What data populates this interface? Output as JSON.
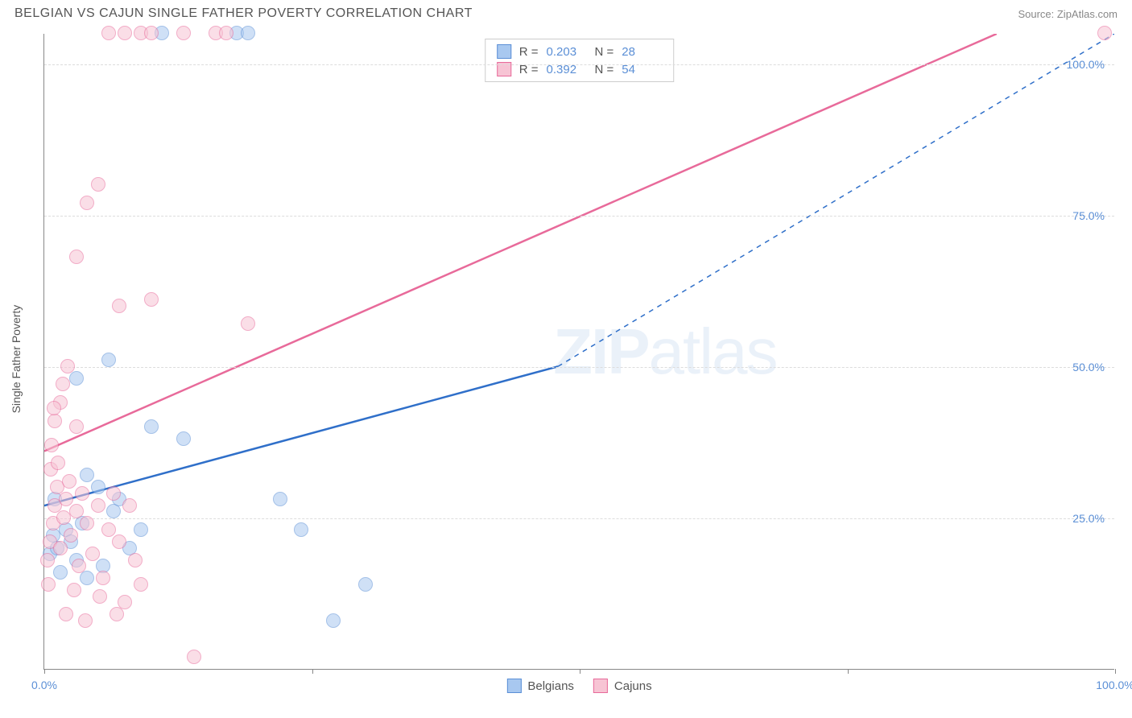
{
  "title": "BELGIAN VS CAJUN SINGLE FATHER POVERTY CORRELATION CHART",
  "source": "Source: ZipAtlas.com",
  "watermark_bold": "ZIP",
  "watermark_light": "atlas",
  "chart": {
    "type": "scatter",
    "xlim": [
      0,
      100
    ],
    "ylim": [
      0,
      105
    ],
    "y_axis_label": "Single Father Poverty",
    "y_ticks": [
      25,
      50,
      75,
      100
    ],
    "y_tick_labels": [
      "25.0%",
      "50.0%",
      "75.0%",
      "100.0%"
    ],
    "x_ticks": [
      0,
      25,
      50,
      75,
      100
    ],
    "x_tick_labels": [
      "0.0%",
      "",
      "",
      "",
      "100.0%"
    ],
    "background_color": "#ffffff",
    "grid_color": "#dcdcdc",
    "axis_color": "#888888",
    "tick_label_color": "#5b8fd6",
    "axis_label_color": "#555555",
    "point_radius": 9,
    "point_opacity": 0.55,
    "series": [
      {
        "name": "Belgians",
        "fill_color": "#a8c8f0",
        "stroke_color": "#5b8fd6",
        "trend_color": "#2f6fc9",
        "R": "0.203",
        "N": "28",
        "trend": {
          "x1": 0,
          "y1": 27,
          "x2": 48,
          "y2": 50,
          "dash_to_x": 100,
          "dash_to_y": 105
        },
        "points": [
          [
            0.5,
            19
          ],
          [
            0.8,
            22
          ],
          [
            1.5,
            16
          ],
          [
            1.2,
            20
          ],
          [
            2,
            23
          ],
          [
            1,
            28
          ],
          [
            2.5,
            21
          ],
          [
            3,
            18
          ],
          [
            3.5,
            24
          ],
          [
            4,
            15
          ],
          [
            5,
            30
          ],
          [
            6.5,
            26
          ],
          [
            5.5,
            17
          ],
          [
            8,
            20
          ],
          [
            9,
            23
          ],
          [
            3,
            48
          ],
          [
            6,
            51
          ],
          [
            10,
            40
          ],
          [
            13,
            38
          ],
          [
            4,
            32
          ],
          [
            7,
            28
          ],
          [
            11,
            105
          ],
          [
            18,
            105
          ],
          [
            19,
            105
          ],
          [
            22,
            28
          ],
          [
            27,
            8
          ],
          [
            30,
            14
          ],
          [
            24,
            23
          ]
        ]
      },
      {
        "name": "Cajuns",
        "fill_color": "#f7c4d4",
        "stroke_color": "#e86a9a",
        "trend_color": "#e86a9a",
        "R": "0.392",
        "N": "54",
        "trend": {
          "x1": 0,
          "y1": 36,
          "x2": 89,
          "y2": 105,
          "dash_to_x": null,
          "dash_to_y": null
        },
        "points": [
          [
            0.3,
            18
          ],
          [
            0.5,
            21
          ],
          [
            0.8,
            24
          ],
          [
            1,
            27
          ],
          [
            1.2,
            30
          ],
          [
            0.6,
            33
          ],
          [
            0.4,
            14
          ],
          [
            1.5,
            20
          ],
          [
            1.8,
            25
          ],
          [
            2,
            28
          ],
          [
            2.3,
            31
          ],
          [
            1.3,
            34
          ],
          [
            0.7,
            37
          ],
          [
            2.5,
            22
          ],
          [
            3,
            26
          ],
          [
            3.5,
            29
          ],
          [
            2.8,
            13
          ],
          [
            3.2,
            17
          ],
          [
            4,
            24
          ],
          [
            1,
            41
          ],
          [
            1.5,
            44
          ],
          [
            3,
            40
          ],
          [
            4.5,
            19
          ],
          [
            5,
            27
          ],
          [
            5.5,
            15
          ],
          [
            6,
            23
          ],
          [
            6.5,
            29
          ],
          [
            7,
            21
          ],
          [
            7.5,
            11
          ],
          [
            8,
            27
          ],
          [
            8.5,
            18
          ],
          [
            3,
            68
          ],
          [
            5,
            80
          ],
          [
            4,
            77
          ],
          [
            7,
            60
          ],
          [
            10,
            61
          ],
          [
            14,
            2
          ],
          [
            19,
            57
          ],
          [
            2,
            9
          ],
          [
            3.8,
            8
          ],
          [
            5.2,
            12
          ],
          [
            6.8,
            9
          ],
          [
            9,
            14
          ],
          [
            6,
            105
          ],
          [
            7.5,
            105
          ],
          [
            9,
            105
          ],
          [
            10,
            105
          ],
          [
            13,
            105
          ],
          [
            16,
            105
          ],
          [
            17,
            105
          ],
          [
            99,
            105
          ],
          [
            1.7,
            47
          ],
          [
            2.2,
            50
          ],
          [
            0.9,
            43
          ]
        ]
      }
    ]
  },
  "legend_bottom": [
    "Belgians",
    "Cajuns"
  ]
}
